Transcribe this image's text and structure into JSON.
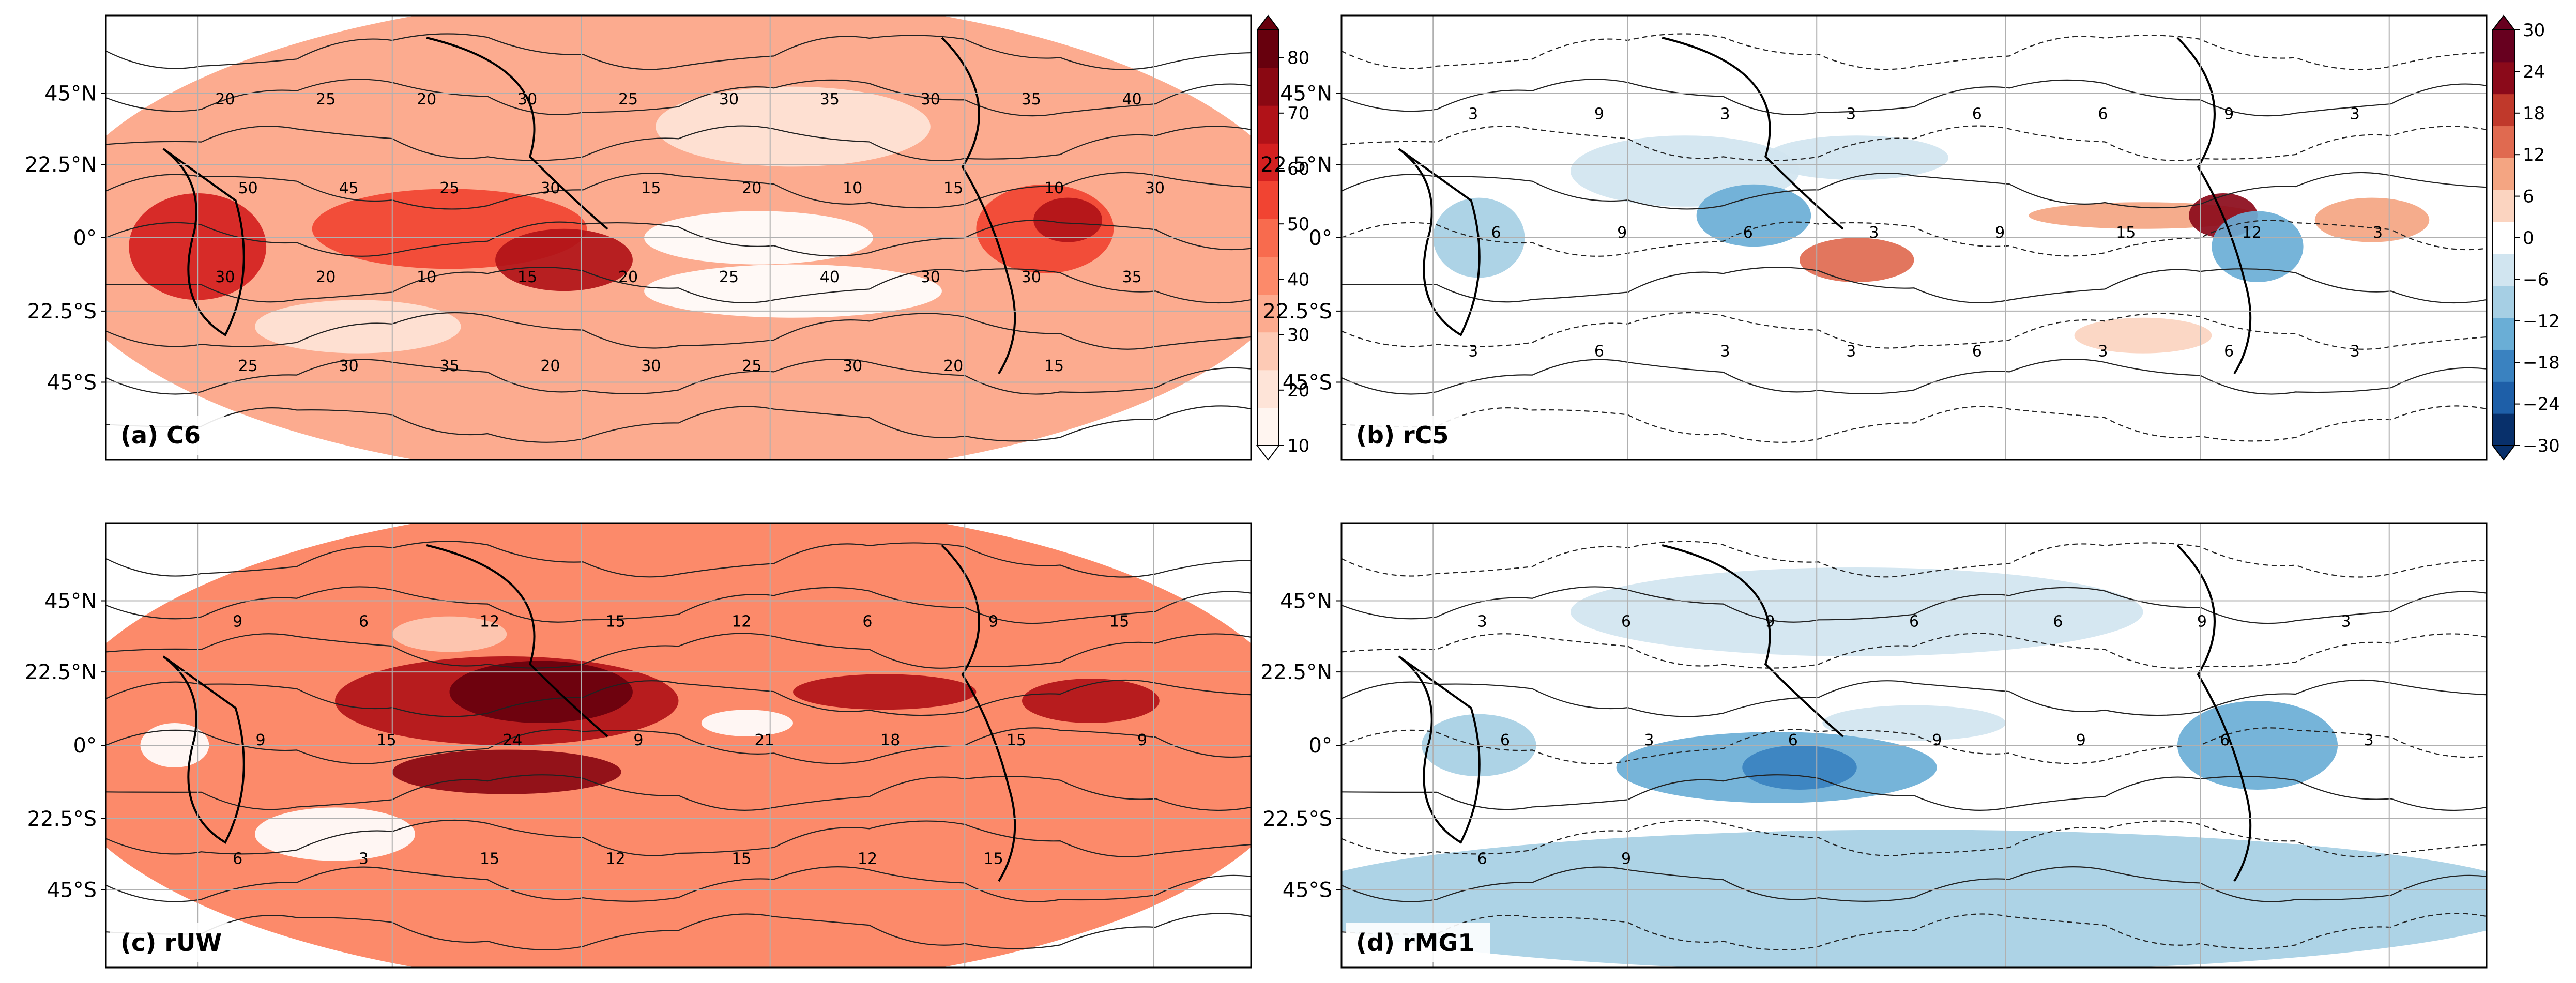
{
  "colors": {
    "reds": [
      "#fff5f0",
      "#fee4d8",
      "#fdcab5",
      "#fcab8f",
      "#fc8a6a",
      "#f86b4e",
      "#f14432",
      "#d42020",
      "#b11218",
      "#8a0812",
      "#67000d"
    ],
    "blues_to_reds": [
      "#08306b",
      "#1e5fa8",
      "#3a82c0",
      "#6aaed6",
      "#a6cfe4",
      "#d1e5f0",
      "#ffffff",
      "#fbd4c0",
      "#f4a582",
      "#e06a50",
      "#c0392b",
      "#8b0a1a",
      "#67001f"
    ],
    "grid": "#b0b0b0"
  },
  "chart_data": [
    {
      "id": "a",
      "type": "heatmap",
      "panel_label": "(a) C6",
      "ytick_labels": [
        "45°N",
        "22.5°N",
        "0°",
        "22.5°S",
        "45°S"
      ],
      "contour_labels": [
        "20",
        "25",
        "20",
        "30",
        "25",
        "30",
        "35",
        "30",
        "35",
        "40",
        "50",
        "45",
        "25",
        "30",
        "15",
        "20",
        "10",
        "15",
        "10",
        "30",
        "30",
        "20",
        "10",
        "15",
        "20",
        "25",
        "40",
        "30",
        "30",
        "35",
        "25",
        "30",
        "35",
        "20",
        "30",
        "25",
        "30",
        "20",
        "15"
      ],
      "colorbar": {
        "ticks": [
          10,
          20,
          30,
          40,
          50,
          60,
          70,
          80
        ],
        "range": [
          10,
          85
        ],
        "extend": "both"
      }
    },
    {
      "id": "b",
      "type": "heatmap",
      "panel_label": "(b) rC5",
      "ytick_labels": [
        "45°N",
        "22.5°N",
        "0°",
        "22.5°S",
        "45°S"
      ],
      "contour_labels": [
        "3",
        "9",
        "3",
        "3",
        "6",
        "6",
        "9",
        "3",
        "6",
        "9",
        "6",
        "3",
        "9",
        "15",
        "12",
        "3",
        "3",
        "6",
        "3",
        "3",
        "6",
        "3",
        "6",
        "3"
      ],
      "colorbar": {
        "ticks": [
          -30,
          -24,
          -18,
          -12,
          -6,
          0,
          6,
          12,
          18,
          24,
          30
        ],
        "range": [
          -30,
          30
        ],
        "extend": "both"
      }
    },
    {
      "id": "c",
      "type": "heatmap",
      "panel_label": "(c) rUW",
      "ytick_labels": [
        "45°N",
        "22.5°N",
        "0°",
        "22.5°S",
        "45°S"
      ],
      "contour_labels": [
        "9",
        "6",
        "12",
        "15",
        "12",
        "6",
        "9",
        "15",
        "9",
        "15",
        "24",
        "9",
        "21",
        "18",
        "15",
        "9",
        "6",
        "3",
        "15",
        "12",
        "15",
        "12",
        "15"
      ]
    },
    {
      "id": "d",
      "type": "heatmap",
      "panel_label": "(d) rMG1",
      "ytick_labels": [
        "45°N",
        "22.5°N",
        "0°",
        "22.5°S",
        "45°S"
      ],
      "contour_labels": [
        "3",
        "6",
        "9",
        "6",
        "6",
        "9",
        "3",
        "6",
        "3",
        "6",
        "9",
        "9",
        "6",
        "3",
        "6",
        "9"
      ]
    }
  ]
}
